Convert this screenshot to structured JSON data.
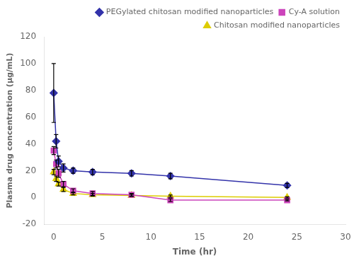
{
  "chart_data": {
    "type": "line",
    "xlabel": "Time (hr)",
    "ylabel": "Plasma drug concentration (μg/mL)",
    "x": [
      0,
      0.25,
      0.5,
      1,
      2,
      4,
      8,
      12,
      24
    ],
    "xlim": [
      -1,
      30
    ],
    "xticks": [
      0,
      5,
      10,
      15,
      20,
      25,
      30
    ],
    "ylim": [
      -20,
      120
    ],
    "yticks": [
      -20,
      0,
      20,
      40,
      60,
      80,
      100,
      120
    ],
    "grid": false,
    "legend": "upper right",
    "series": [
      {
        "name": "PEGylated chitosan modified nanoparticles",
        "color": "#3333aa",
        "marker": "diamond",
        "values": [
          78,
          42,
          27,
          22,
          20,
          19,
          18,
          16,
          9
        ],
        "yerr": [
          22,
          5,
          4,
          3,
          2,
          2,
          2,
          2,
          1.5
        ]
      },
      {
        "name": "Cy-A solution",
        "color": "#cc44bb",
        "marker": "square",
        "values": [
          35,
          25,
          18,
          10,
          5,
          3,
          2,
          -2,
          -2
        ],
        "yerr": [
          3,
          3,
          3,
          2,
          1.5,
          1.5,
          1,
          1,
          0.5
        ]
      },
      {
        "name": "Chitosan modified nanoparticles",
        "color": "#ddcc00",
        "marker": "triangle",
        "values": [
          19,
          14,
          10,
          6,
          3,
          2,
          1.5,
          1,
          0
        ],
        "yerr": [
          2,
          2,
          1.5,
          1.5,
          1,
          1,
          0.8,
          0.8,
          0.5
        ]
      }
    ]
  }
}
